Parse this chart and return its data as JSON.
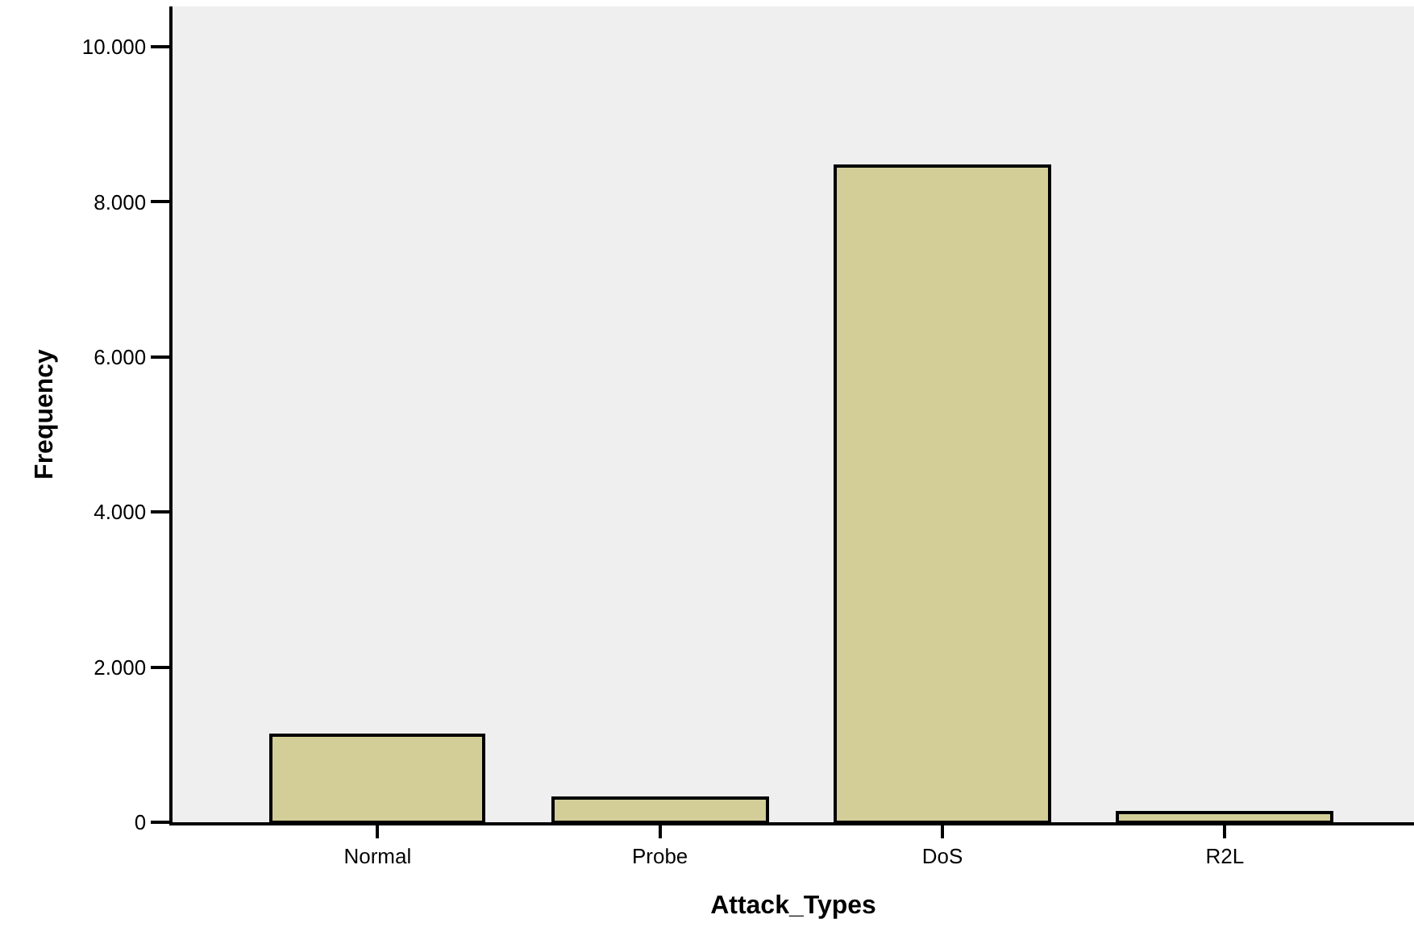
{
  "chart_data": {
    "type": "bar",
    "xlabel": "Attack_Types",
    "ylabel": "Frequency",
    "categories": [
      "Normal",
      "Probe",
      "DoS",
      "R2L"
    ],
    "values": [
      1120,
      315,
      8470,
      120
    ],
    "color": "#d3ce97",
    "ylim": [
      0,
      10520
    ],
    "yticks": [
      0,
      {
        "value": 2000,
        "label": "2.000"
      },
      {
        "value": 4000,
        "label": "4.000"
      },
      {
        "value": 6000,
        "label": "6.000"
      },
      {
        "value": 8000,
        "label": "8.000"
      },
      {
        "value": 10000,
        "label": "10.000"
      }
    ],
    "grid": false,
    "legend": false
  }
}
